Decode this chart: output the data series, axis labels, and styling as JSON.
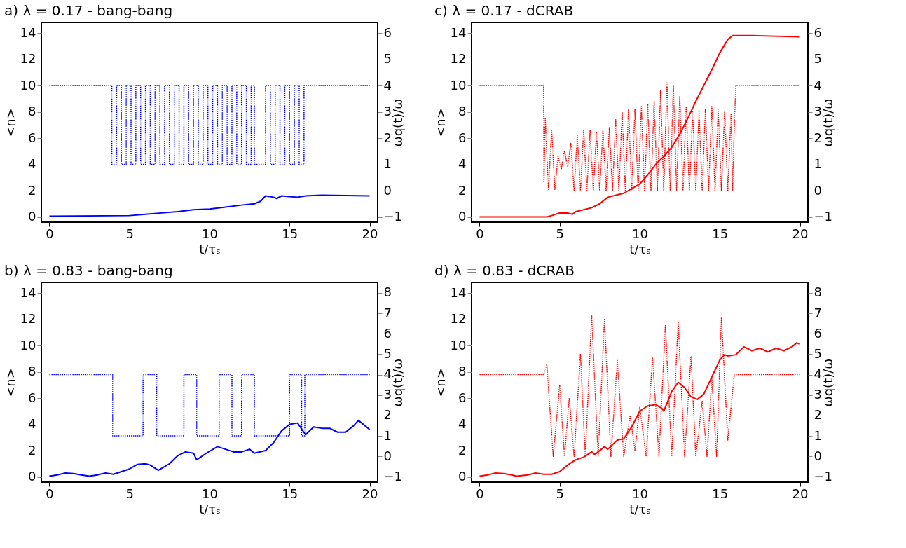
{
  "chart_data": [
    {
      "type": "line",
      "title": "a)  λ = 0.17 - bang-bang",
      "xlabel": "t/τₛ",
      "ylabel": "<n>",
      "y2label": "ωq(t)/ω",
      "xlim": [
        -0.5,
        20.5
      ],
      "xticks": [
        0,
        5,
        10,
        15,
        20
      ],
      "ylim": [
        -0.4,
        14.8
      ],
      "yticks": [
        0,
        2,
        4,
        6,
        8,
        10,
        12,
        14
      ],
      "y2lim": [
        -1.2,
        6.4
      ],
      "y2ticks": [
        -1,
        0,
        1,
        2,
        3,
        4,
        5,
        6
      ],
      "grid": false,
      "marker": "none",
      "series": [
        {
          "color": "#0000ff",
          "axis": "y2",
          "line_style": "dotted",
          "x": [
            0,
            3.9,
            3.9,
            4.2,
            4.2,
            4.5,
            4.5,
            4.8,
            4.8,
            5.1,
            5.1,
            5.4,
            5.4,
            5.7,
            5.7,
            6.0,
            6.0,
            6.3,
            6.3,
            6.6,
            6.6,
            6.9,
            6.9,
            7.2,
            7.2,
            7.5,
            7.5,
            7.8,
            7.8,
            8.1,
            8.1,
            8.4,
            8.4,
            8.7,
            8.7,
            9.0,
            9.0,
            9.3,
            9.3,
            9.6,
            9.6,
            9.9,
            9.9,
            10.2,
            10.2,
            10.5,
            10.5,
            10.8,
            10.8,
            11.1,
            11.1,
            11.4,
            11.4,
            11.7,
            11.7,
            12.0,
            12.0,
            12.3,
            12.3,
            12.6,
            12.6,
            12.8,
            12.8,
            13.5,
            13.5,
            13.8,
            13.8,
            14.1,
            14.1,
            14.4,
            14.4,
            14.7,
            14.7,
            15.0,
            15.0,
            15.3,
            15.3,
            15.6,
            15.6,
            15.9,
            15.9,
            20
          ],
          "values": [
            4,
            4,
            1,
            1,
            4,
            4,
            1,
            1,
            4,
            4,
            1,
            1,
            4,
            4,
            1,
            1,
            4,
            4,
            1,
            1,
            4,
            4,
            1,
            1,
            4,
            4,
            1,
            1,
            4,
            4,
            1,
            1,
            4,
            4,
            1,
            1,
            4,
            4,
            1,
            1,
            4,
            4,
            1,
            1,
            4,
            4,
            1,
            1,
            4,
            4,
            1,
            1,
            4,
            4,
            1,
            1,
            4,
            4,
            1,
            1,
            4,
            4,
            1,
            1,
            4,
            4,
            1,
            1,
            4,
            4,
            1,
            1,
            4,
            4,
            1,
            1,
            4,
            4,
            1,
            1,
            4,
            4
          ]
        },
        {
          "color": "#0000ff",
          "line_style": "solid",
          "x": [
            0,
            5,
            6,
            7,
            8,
            9,
            10,
            11,
            12,
            12.8,
            13.2,
            13.5,
            14,
            14.2,
            14.5,
            15,
            15.5,
            16,
            17,
            20
          ],
          "values": [
            0.05,
            0.1,
            0.2,
            0.3,
            0.4,
            0.55,
            0.6,
            0.75,
            0.9,
            1.0,
            1.2,
            1.6,
            1.5,
            1.4,
            1.6,
            1.55,
            1.5,
            1.6,
            1.65,
            1.6
          ]
        }
      ]
    },
    {
      "type": "line",
      "title": "c)  λ = 0.17 - dCRAB",
      "xlabel": "t/τₛ",
      "ylabel": "<n>",
      "y2label": "ωq(t)/ω",
      "xlim": [
        -0.5,
        20.5
      ],
      "xticks": [
        0,
        5,
        10,
        15,
        20
      ],
      "ylim": [
        -0.4,
        14.8
      ],
      "yticks": [
        0,
        2,
        4,
        6,
        8,
        10,
        12,
        14
      ],
      "y2lim": [
        -1.2,
        6.4
      ],
      "y2ticks": [
        -1,
        0,
        1,
        2,
        3,
        4,
        5,
        6
      ],
      "grid": false,
      "marker": "none",
      "series": [
        {
          "color": "#ff0000",
          "axis": "y2",
          "line_style": "dotted",
          "x": [
            0,
            4.0,
            4.02,
            4.1,
            4.3,
            4.5,
            4.7,
            4.9,
            5.1,
            5.3,
            5.5,
            5.7,
            5.9,
            6.1,
            6.3,
            6.5,
            6.7,
            6.9,
            7.1,
            7.3,
            7.5,
            7.7,
            7.9,
            8.1,
            8.3,
            8.5,
            8.7,
            8.9,
            9.1,
            9.3,
            9.5,
            9.7,
            9.9,
            10.1,
            10.3,
            10.5,
            10.7,
            10.9,
            11.1,
            11.3,
            11.5,
            11.7,
            11.9,
            12.1,
            12.3,
            12.5,
            12.7,
            12.9,
            13.1,
            13.3,
            13.5,
            13.7,
            13.9,
            14.1,
            14.3,
            14.5,
            14.7,
            14.9,
            15.1,
            15.3,
            15.5,
            15.7,
            15.8,
            15.9,
            16.0,
            20
          ],
          "values": [
            4,
            4,
            0.3,
            2.75,
            0.05,
            2.3,
            0.05,
            1.3,
            0.8,
            1.5,
            0.9,
            1.8,
            0,
            2.1,
            0,
            2.3,
            0,
            2.3,
            0,
            2.2,
            0,
            2.3,
            0,
            2.4,
            0,
            2.7,
            0,
            3.0,
            0,
            3.1,
            0,
            3.1,
            0,
            3.2,
            0,
            3.3,
            0,
            3.4,
            0,
            3.8,
            0,
            4.1,
            0,
            4.0,
            0,
            3.6,
            0,
            3.2,
            0,
            3.0,
            0,
            3.0,
            0,
            3.1,
            0,
            3.2,
            0,
            3.1,
            0,
            3.0,
            0,
            2.9,
            0,
            2.4,
            4,
            4
          ]
        },
        {
          "color": "#ff0000",
          "line_style": "solid",
          "x": [
            0,
            4.2,
            4.5,
            5,
            5.5,
            5.8,
            6,
            7,
            7.5,
            8,
            9,
            10,
            10.5,
            11,
            11.5,
            12,
            12.5,
            13,
            13.5,
            14,
            14.5,
            15,
            15.5,
            15.8,
            16,
            17,
            20
          ],
          "values": [
            0,
            0,
            0.1,
            0.3,
            0.3,
            0.2,
            0.4,
            0.7,
            1.0,
            1.5,
            1.8,
            2.5,
            3.2,
            4.0,
            4.6,
            5.3,
            6.3,
            7.5,
            8.8,
            10,
            11.2,
            12.5,
            13.5,
            13.8,
            13.8,
            13.8,
            13.7
          ]
        }
      ]
    },
    {
      "type": "line",
      "title": "b)  λ = 0.83 - bang-bang",
      "xlabel": "t/τₛ",
      "ylabel": "<n>",
      "y2label": "ωq(t)/ω",
      "xlim": [
        -0.5,
        20.5
      ],
      "xticks": [
        0,
        5,
        10,
        15,
        20
      ],
      "ylim": [
        -0.4,
        14.8
      ],
      "yticks": [
        0,
        2,
        4,
        6,
        8,
        10,
        12,
        14
      ],
      "y2lim": [
        -1.26,
        8.51
      ],
      "y2ticks": [
        -1,
        0,
        1,
        2,
        3,
        4,
        5,
        6,
        7,
        8
      ],
      "grid": false,
      "marker": "none",
      "series": [
        {
          "color": "#0000ff",
          "axis": "y2",
          "line_style": "dotted",
          "x": [
            0,
            3.95,
            3.95,
            5.85,
            5.85,
            6.7,
            6.7,
            8.4,
            8.4,
            9.2,
            9.2,
            10.6,
            10.6,
            11.4,
            11.4,
            12.0,
            12.0,
            12.8,
            12.8,
            15.0,
            15.0,
            15.75,
            15.75,
            15.95,
            15.95,
            20
          ],
          "values": [
            4,
            4,
            1,
            1,
            4,
            4,
            1,
            1,
            4,
            4,
            1,
            1,
            4,
            4,
            1,
            1,
            4,
            4,
            1,
            1,
            4,
            4,
            1,
            1,
            4,
            4
          ]
        },
        {
          "color": "#0000ff",
          "line_style": "solid",
          "x": [
            0,
            0.5,
            1,
            1.5,
            2,
            2.5,
            3,
            3.5,
            4,
            4.5,
            5,
            5.5,
            6,
            6.3,
            6.8,
            7.5,
            8,
            8.5,
            9,
            9.2,
            9.8,
            10.5,
            11,
            11.5,
            12,
            12.5,
            12.8,
            13.5,
            14,
            14.5,
            15,
            15.5,
            16,
            16.5,
            17,
            17.5,
            18,
            18.5,
            19,
            19.3,
            20
          ],
          "values": [
            0.05,
            0.15,
            0.3,
            0.25,
            0.15,
            0.05,
            0.15,
            0.3,
            0.2,
            0.4,
            0.6,
            0.95,
            1.0,
            0.9,
            0.5,
            1.0,
            1.6,
            1.9,
            1.8,
            1.3,
            1.8,
            2.3,
            2.1,
            1.9,
            1.9,
            2.1,
            1.8,
            2.0,
            2.6,
            3.5,
            4.0,
            4.1,
            3.2,
            3.8,
            3.7,
            3.7,
            3.4,
            3.4,
            3.9,
            4.3,
            3.6
          ]
        }
      ]
    },
    {
      "type": "line",
      "title": "d)  λ = 0.83 - dCRAB",
      "xlabel": "t/τₛ",
      "ylabel": "<n>",
      "y2label": "ωq(t)/ω",
      "xlim": [
        -0.5,
        20.5
      ],
      "xticks": [
        0,
        5,
        10,
        15,
        20
      ],
      "ylim": [
        -0.4,
        14.8
      ],
      "yticks": [
        0,
        2,
        4,
        6,
        8,
        10,
        12,
        14
      ],
      "y2lim": [
        -1.26,
        8.51
      ],
      "y2ticks": [
        -1,
        0,
        1,
        2,
        3,
        4,
        5,
        6,
        7,
        8
      ],
      "grid": false,
      "marker": "none",
      "series": [
        {
          "color": "#ff0000",
          "axis": "y2",
          "line_style": "dotted",
          "x": [
            0,
            4.0,
            4.2,
            4.6,
            5.0,
            5.3,
            5.6,
            5.9,
            6.3,
            6.6,
            7.0,
            7.4,
            7.8,
            8.2,
            8.6,
            9.0,
            9.4,
            9.7,
            10.0,
            10.4,
            10.8,
            11.2,
            11.6,
            12.0,
            12.4,
            12.8,
            13.2,
            13.5,
            13.9,
            14.2,
            14.5,
            14.8,
            15.1,
            15.5,
            15.9,
            20
          ],
          "values": [
            4,
            4,
            4.5,
            0,
            3.5,
            0,
            2.85,
            0,
            5.0,
            0,
            6.9,
            0,
            6.7,
            0,
            4.7,
            0,
            2.0,
            0.3,
            2.4,
            0,
            4.85,
            0,
            6.4,
            0,
            6.6,
            0,
            4.9,
            0,
            2.7,
            0,
            3.8,
            0,
            6.8,
            0.8,
            4,
            4
          ]
        },
        {
          "color": "#ff0000",
          "line_style": "solid",
          "x": [
            0,
            0.5,
            1,
            1.5,
            2,
            2.3,
            3,
            3.5,
            4,
            4.5,
            5,
            5.5,
            6,
            6.5,
            7,
            7.2,
            7.8,
            8,
            8.6,
            9,
            9.5,
            10,
            10.5,
            11,
            11.4,
            11.5,
            12,
            12.4,
            12.8,
            13.2,
            13.6,
            14,
            14.5,
            15,
            15.3,
            15.5,
            16,
            16.5,
            17,
            17.5,
            18,
            18.5,
            19,
            19.5,
            19.8,
            20
          ],
          "values": [
            0.05,
            0.15,
            0.3,
            0.25,
            0.15,
            0.05,
            0.15,
            0.3,
            0.2,
            0.2,
            0.4,
            0.9,
            1.3,
            1.5,
            1.9,
            1.7,
            2.3,
            2.1,
            2.8,
            2.9,
            3.8,
            5.0,
            5.4,
            5.5,
            5.2,
            5.0,
            6.5,
            7.2,
            6.8,
            6.1,
            5.9,
            6.3,
            7.6,
            8.9,
            9.3,
            9.2,
            9.3,
            9.9,
            9.6,
            9.8,
            9.5,
            9.8,
            9.6,
            9.9,
            10.2,
            10.1
          ]
        }
      ]
    }
  ]
}
